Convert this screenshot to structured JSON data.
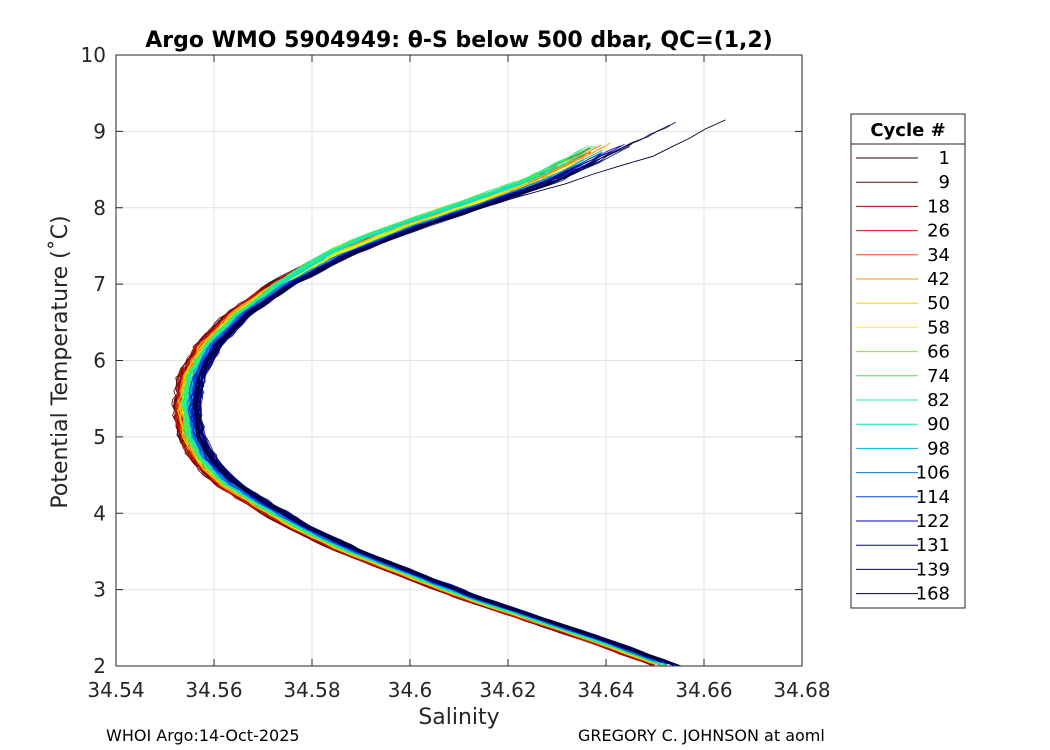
{
  "chart_data": {
    "type": "line",
    "title": "Argo WMO 5904949: θ-S below 500 dbar,  QC=(1,2)",
    "xlabel": "Salinity",
    "ylabel": "Potential Temperature (˚C)",
    "xlim": [
      34.54,
      34.68
    ],
    "ylim": [
      2,
      10
    ],
    "xticks": [
      34.54,
      34.56,
      34.58,
      34.6,
      34.62,
      34.64,
      34.66,
      34.68
    ],
    "xtick_labels": [
      "34.54",
      "34.56",
      "34.58",
      "34.6",
      "34.62",
      "34.64",
      "34.66",
      "34.68"
    ],
    "yticks": [
      2,
      3,
      4,
      5,
      6,
      7,
      8,
      9,
      10
    ],
    "ytick_labels": [
      "2",
      "3",
      "4",
      "5",
      "6",
      "7",
      "8",
      "9",
      "10"
    ],
    "grid": true,
    "legend": {
      "title": "Cycle #",
      "position": "right",
      "entries": [
        {
          "label": "1",
          "color": "#330000"
        },
        {
          "label": "9",
          "color": "#660000"
        },
        {
          "label": "18",
          "color": "#a30000"
        },
        {
          "label": "26",
          "color": "#d91a00"
        },
        {
          "label": "34",
          "color": "#ff5500"
        },
        {
          "label": "42",
          "color": "#ff9900"
        },
        {
          "label": "50",
          "color": "#ffd500"
        },
        {
          "label": "58",
          "color": "#ffff00"
        },
        {
          "label": "66",
          "color": "#88ee22"
        },
        {
          "label": "74",
          "color": "#33ee55"
        },
        {
          "label": "82",
          "color": "#22ee99"
        },
        {
          "label": "90",
          "color": "#11ddcc"
        },
        {
          "label": "98",
          "color": "#00aaee"
        },
        {
          "label": "106",
          "color": "#0077dd"
        },
        {
          "label": "114",
          "color": "#0044ee"
        },
        {
          "label": "122",
          "color": "#0000cc"
        },
        {
          "label": "131",
          "color": "#00009a"
        },
        {
          "label": "139",
          "color": "#000066"
        },
        {
          "label": "168",
          "color": "#000033"
        }
      ]
    },
    "base_profile": [
      {
        "s": 34.6525,
        "t": 2.0
      },
      {
        "s": 34.64,
        "t": 2.3
      },
      {
        "s": 34.626,
        "t": 2.6
      },
      {
        "s": 34.612,
        "t": 2.9
      },
      {
        "s": 34.6,
        "t": 3.2
      },
      {
        "s": 34.588,
        "t": 3.5
      },
      {
        "s": 34.578,
        "t": 3.8
      },
      {
        "s": 34.57,
        "t": 4.1
      },
      {
        "s": 34.5625,
        "t": 4.4
      },
      {
        "s": 34.558,
        "t": 4.7
      },
      {
        "s": 34.5555,
        "t": 5.0
      },
      {
        "s": 34.5545,
        "t": 5.4
      },
      {
        "s": 34.5555,
        "t": 5.8
      },
      {
        "s": 34.559,
        "t": 6.2
      },
      {
        "s": 34.565,
        "t": 6.6
      },
      {
        "s": 34.574,
        "t": 7.0
      },
      {
        "s": 34.586,
        "t": 7.4
      },
      {
        "s": 34.6,
        "t": 7.75
      },
      {
        "s": 34.614,
        "t": 8.05
      },
      {
        "s": 34.627,
        "t": 8.35
      },
      {
        "s": 34.638,
        "t": 8.7
      }
    ],
    "series_note": "Each legend cycle is drawn as a theta-S profile; warm end reaches S=34.670, T=9.15 (cycle 168); cold end reaches S=34.652, T=2.0"
  },
  "footer": {
    "left": "WHOI Argo:14-Oct-2025",
    "right": "GREGORY C. JOHNSON at aoml"
  }
}
